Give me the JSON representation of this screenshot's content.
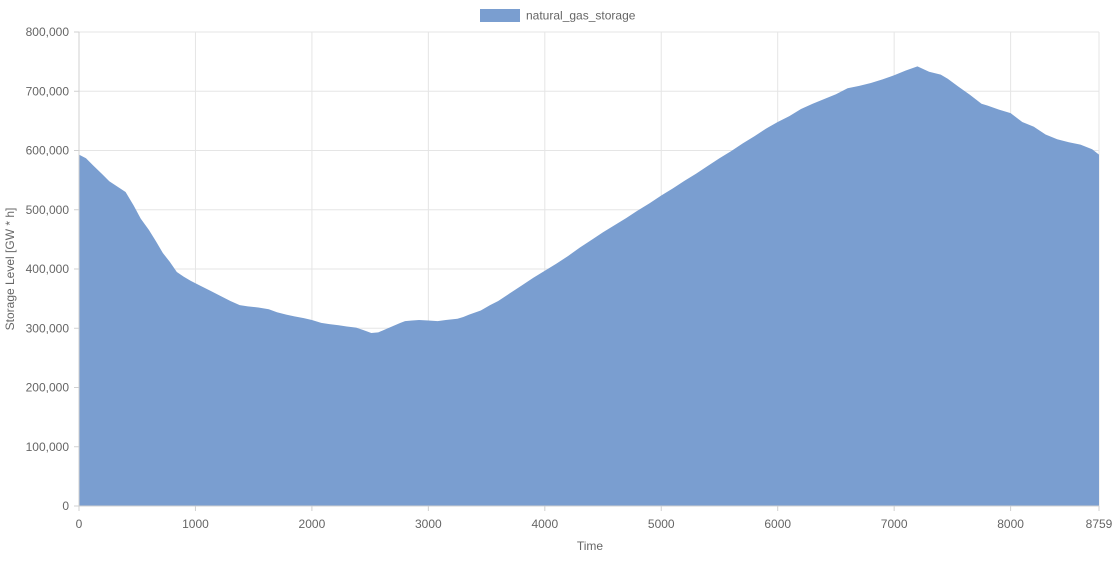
{
  "chart_data": {
    "type": "area",
    "xlabel": "Time",
    "ylabel": "Storage Level [GW * h]",
    "xlim": [
      0,
      8759
    ],
    "ylim": [
      0,
      800000
    ],
    "x_ticks": [
      0,
      1000,
      2000,
      3000,
      4000,
      5000,
      6000,
      7000,
      8000,
      8759
    ],
    "y_ticks": [
      0,
      100000,
      200000,
      300000,
      400000,
      500000,
      600000,
      700000,
      800000
    ],
    "x_tick_labels": [
      "0",
      "1000",
      "2000",
      "3000",
      "4000",
      "5000",
      "6000",
      "7000",
      "8000",
      "8759"
    ],
    "y_tick_labels": [
      "0",
      "100,000",
      "200,000",
      "300,000",
      "400,000",
      "500,000",
      "600,000",
      "700,000",
      "800,000"
    ],
    "grid": true,
    "legend_position": "top-center",
    "series": [
      {
        "name": "natural_gas_storage",
        "color": "#7a9ed0",
        "x": [
          0,
          60,
          120,
          200,
          260,
          330,
          400,
          470,
          530,
          600,
          660,
          720,
          780,
          840,
          900,
          960,
          1040,
          1130,
          1220,
          1300,
          1380,
          1450,
          1540,
          1630,
          1700,
          1780,
          1850,
          1930,
          2000,
          2080,
          2150,
          2230,
          2300,
          2380,
          2440,
          2510,
          2570,
          2640,
          2700,
          2760,
          2800,
          2860,
          2920,
          3000,
          3080,
          3150,
          3250,
          3300,
          3350,
          3450,
          3530,
          3600,
          3700,
          3800,
          3900,
          4000,
          4100,
          4200,
          4300,
          4400,
          4500,
          4600,
          4700,
          4800,
          4900,
          5000,
          5100,
          5200,
          5300,
          5400,
          5500,
          5600,
          5700,
          5800,
          5900,
          6000,
          6100,
          6200,
          6300,
          6400,
          6500,
          6600,
          6700,
          6800,
          6900,
          7000,
          7100,
          7200,
          7300,
          7400,
          7460,
          7550,
          7650,
          7750,
          7800,
          7900,
          8000,
          8100,
          8200,
          8300,
          8400,
          8500,
          8600,
          8700,
          8759
        ],
        "values": [
          593000,
          587000,
          575000,
          560000,
          548000,
          539000,
          530000,
          507000,
          485000,
          466000,
          447000,
          427000,
          412000,
          395000,
          387000,
          380000,
          372000,
          363000,
          354000,
          346000,
          339000,
          337000,
          335000,
          332000,
          327000,
          323000,
          320000,
          317000,
          314000,
          309000,
          307000,
          305000,
          303000,
          301000,
          297000,
          292000,
          293000,
          299000,
          304000,
          309000,
          312000,
          313000,
          314000,
          313000,
          312000,
          314000,
          316000,
          319000,
          323000,
          330000,
          339000,
          346000,
          359000,
          372000,
          385000,
          397000,
          409000,
          422000,
          436000,
          449000,
          462000,
          474000,
          486000,
          499000,
          511000,
          524000,
          536000,
          549000,
          561000,
          574000,
          587000,
          599000,
          612000,
          624000,
          637000,
          648000,
          658000,
          670000,
          679000,
          687000,
          695000,
          705000,
          709000,
          714000,
          720000,
          727000,
          735000,
          742000,
          733000,
          728000,
          721000,
          708000,
          694000,
          679000,
          676000,
          669000,
          663000,
          648000,
          640000,
          627000,
          619000,
          614000,
          610000,
          602000,
          593000
        ]
      }
    ]
  }
}
